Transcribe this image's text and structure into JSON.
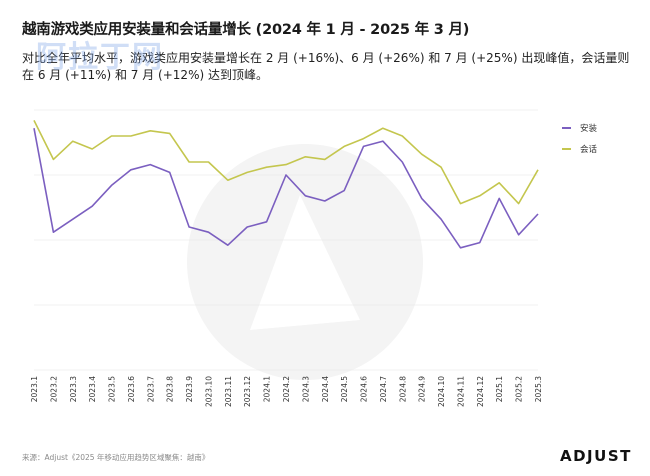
{
  "header": {
    "title": "越南游戏类应用安装量和会话量增长 (2024 年 1 月 - 2025 年 3 月)",
    "subtitle": "对比全年平均水平，游戏类应用安装量增长在 2 月 (+16%)、6 月 (+26%) 和 7 月 (+25%) 出现峰值，会话量则在 6 月 (+11%) 和 7 月 (+12%) 达到顶峰。"
  },
  "watermark": {
    "text": "阿拉丁网"
  },
  "footer": {
    "source": "来源：Adjust《2025 年移动应用趋势区域聚焦：越南》",
    "brand": "ADJUST"
  },
  "colors": {
    "installs": "#7b5fc0",
    "sessions": "#c4c64e",
    "grid": "#e6e6e6",
    "background_mark": "#f3f3f3"
  },
  "chart_data": {
    "type": "line",
    "title": "",
    "xlabel": "",
    "ylabel": "",
    "grid": true,
    "legend_position": "right",
    "categories": [
      "2023.1",
      "2023.2",
      "2023.3",
      "2023.4",
      "2023.5",
      "2023.6",
      "2023.7",
      "2023.8",
      "2023.9",
      "2023.10",
      "2023.11",
      "2023.12",
      "2024.1",
      "2024.2",
      "2024.3",
      "2024.4",
      "2024.5",
      "2024.6",
      "2024.7",
      "2024.8",
      "2024.9",
      "2024.10",
      "2024.11",
      "2024.12",
      "2025.1",
      "2025.2",
      "2025.3"
    ],
    "ylim": [
      0,
      100
    ],
    "series": [
      {
        "name": "安装",
        "color": "#7b5fc0",
        "values": [
          93,
          53,
          58,
          63,
          71,
          77,
          79,
          76,
          55,
          53,
          48,
          55,
          57,
          75,
          67,
          65,
          69,
          86,
          88,
          80,
          66,
          58,
          47,
          49,
          66,
          52,
          60
        ]
      },
      {
        "name": "会话",
        "color": "#c4c64e",
        "values": [
          96,
          81,
          88,
          85,
          90,
          90,
          92,
          91,
          80,
          80,
          73,
          76,
          78,
          79,
          82,
          81,
          86,
          89,
          93,
          90,
          83,
          78,
          64,
          67,
          72,
          64,
          77
        ]
      }
    ]
  }
}
